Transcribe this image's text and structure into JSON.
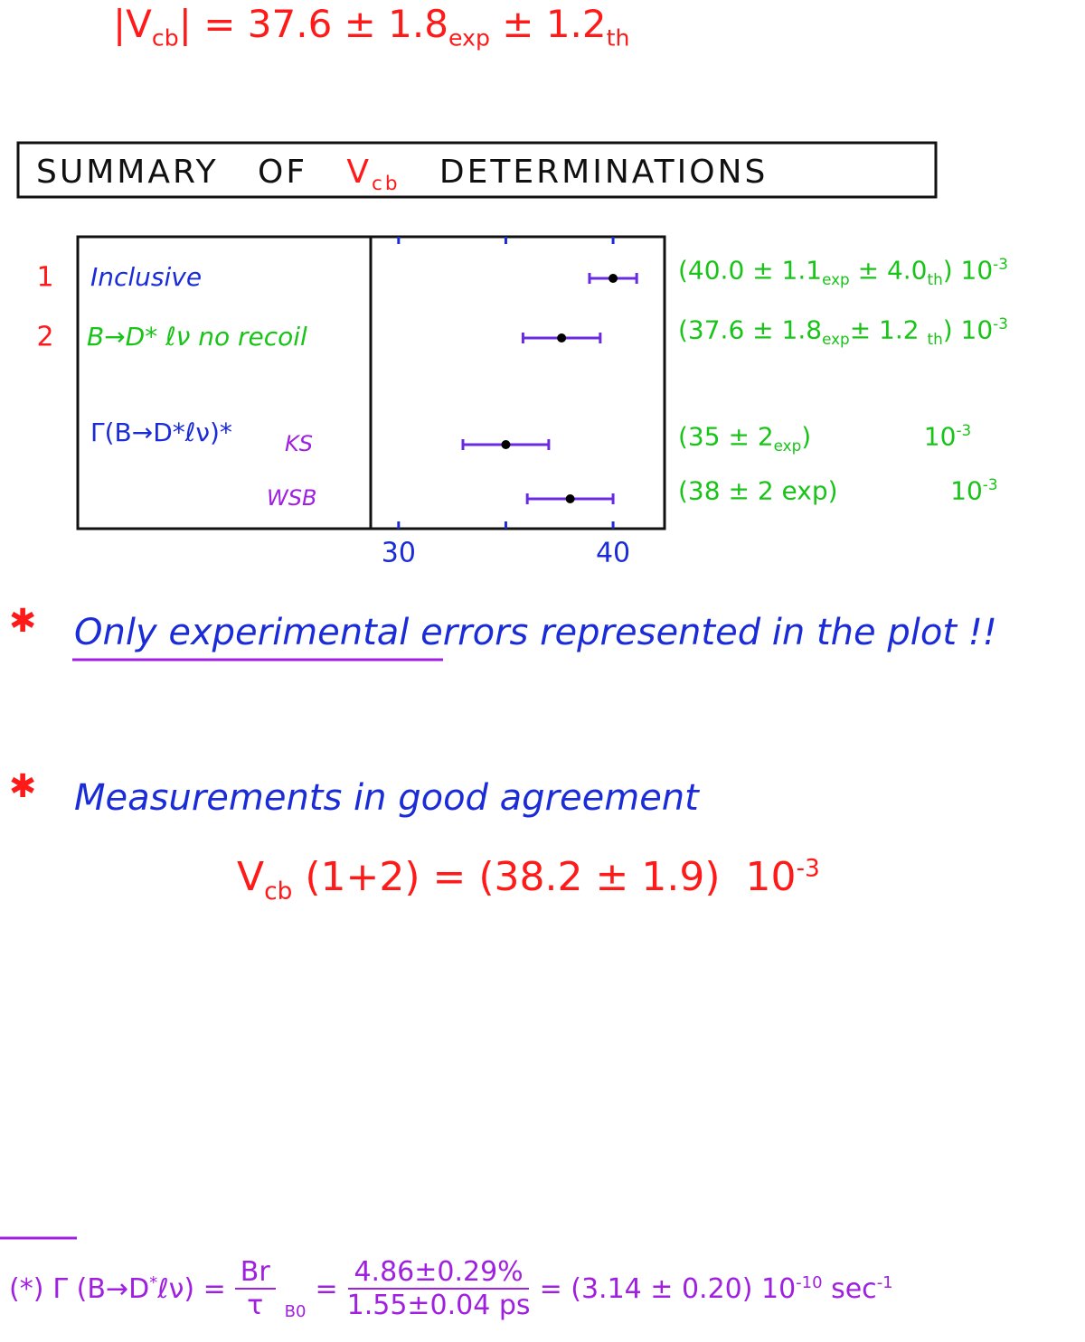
{
  "header": {
    "formula": [
      {
        "text": "|V"
      },
      {
        "text": "cb",
        "style": "sub"
      },
      {
        "text": "| = 37.6 ± 1.8"
      },
      {
        "text": "exp",
        "style": "sub"
      },
      {
        "text": " ± 1.2"
      },
      {
        "text": "th",
        "style": "sub"
      }
    ]
  },
  "summary_title": [
    {
      "text": "SUMMARY   OF   "
    },
    {
      "text": "V",
      "color": "#ff1a1a"
    },
    {
      "text": "cb",
      "style": "sub",
      "color": "#ff1a1a"
    },
    {
      "text": "   DETERMINATIONS"
    }
  ],
  "chart_data": {
    "type": "errorbar",
    "categories": [
      "Inclusive",
      "B→D* ℓν  no recoil",
      "KS",
      "WSB"
    ],
    "row_numbers": [
      "1",
      "2",
      null,
      null
    ],
    "group_label": "Γ(B→D*ℓν)*",
    "values": [
      40.0,
      37.6,
      35,
      38
    ],
    "errors": [
      1.1,
      1.8,
      2,
      2
    ],
    "xlim": [
      28.7,
      42.4
    ],
    "xticks": [
      30,
      40
    ],
    "xminor_ticks": [
      35
    ],
    "bar_color": "#6a2be0",
    "point_color": "#000000",
    "annotations": [
      [
        {
          "text": "(40.0 ± 1.1"
        },
        {
          "text": "exp",
          "style": "sub"
        },
        {
          "text": " ± 4.0"
        },
        {
          "text": "th",
          "style": "sub"
        },
        {
          "text": ") 10"
        },
        {
          "text": "-3",
          "style": "sup"
        }
      ],
      [
        {
          "text": "(37.6 ± 1.8"
        },
        {
          "text": "exp",
          "style": "sub"
        },
        {
          "text": "± 1.2 "
        },
        {
          "text": "th",
          "style": "sub"
        },
        {
          "text": ") 10"
        },
        {
          "text": "-3",
          "style": "sup"
        }
      ],
      [
        {
          "text": "(35 ± 2"
        },
        {
          "text": "exp",
          "style": "sub"
        },
        {
          "text": ")              10"
        },
        {
          "text": "-3",
          "style": "sup"
        }
      ],
      [
        {
          "text": "(38 ± 2 exp)              10"
        },
        {
          "text": "-3",
          "style": "sup"
        }
      ]
    ]
  },
  "notes": [
    {
      "bullet": "✱",
      "text": "Only experimental errors represented in the plot !!"
    },
    {
      "bullet": "✱",
      "text": "Measurements in good agreement"
    }
  ],
  "result": [
    {
      "text": "V"
    },
    {
      "text": "cb",
      "style": "sub"
    },
    {
      "text": " (1+2) = (38.2 ± 1.9)  10"
    },
    {
      "text": "-3",
      "style": "sup"
    }
  ],
  "footnote": {
    "marker": "(*)",
    "lhs": [
      {
        "text": "Γ (B→D"
      },
      {
        "text": "*",
        "style": "sup"
      },
      {
        "text": "ℓν) ="
      }
    ],
    "frac1": {
      "num": "Br",
      "den": "τ",
      "sub": "B0"
    },
    "eq": "=",
    "frac2": {
      "num": "4.86±0.29%",
      "den": "1.55±0.04 ps"
    },
    "rhs": [
      {
        "text": "= (3.14 ± 0.20) 10"
      },
      {
        "text": "-10",
        "style": "sup"
      },
      {
        "text": " sec"
      },
      {
        "text": "-1",
        "style": "sup"
      }
    ]
  }
}
